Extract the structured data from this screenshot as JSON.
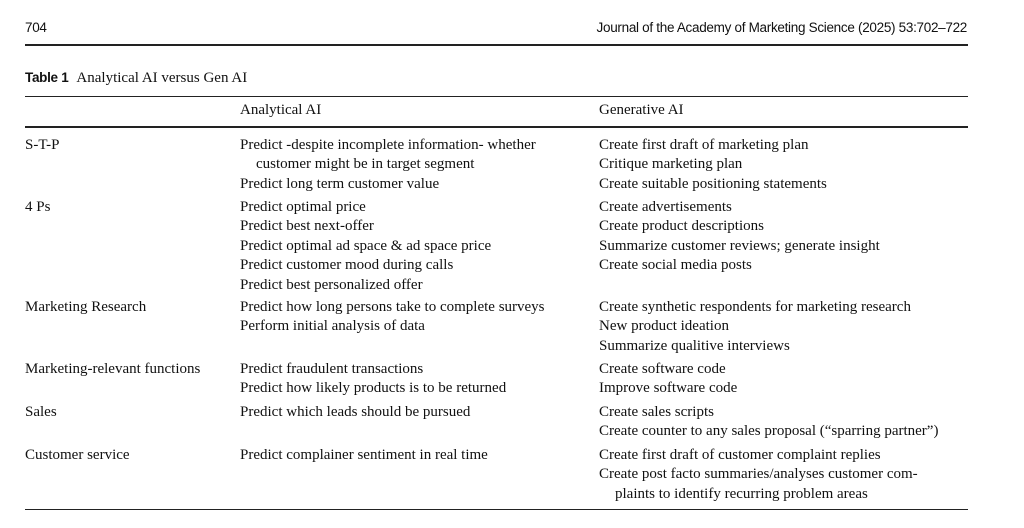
{
  "page_header": {
    "page_number": "704",
    "journal": "Journal of the Academy of Marketing Science (2025) 53:702–722"
  },
  "table": {
    "label": "Table 1",
    "title": "Analytical AI versus Gen AI",
    "columns": [
      "",
      "Analytical AI",
      "Generative AI"
    ],
    "rows": [
      {
        "category": "S-T-P",
        "analytical": [
          [
            "Predict -despite incomplete information- whether",
            "customer might be in target segment"
          ],
          [
            "Predict long term customer value"
          ]
        ],
        "generative": [
          [
            "Create first draft of marketing plan"
          ],
          [
            "Critique marketing plan"
          ],
          [
            "Create suitable positioning statements"
          ]
        ]
      },
      {
        "category": "4 Ps",
        "analytical": [
          [
            "Predict optimal price"
          ],
          [
            "Predict best next-offer"
          ],
          [
            "Predict optimal ad space & ad space price"
          ],
          [
            "Predict customer mood during calls"
          ],
          [
            "Predict best personalized offer"
          ]
        ],
        "generative": [
          [
            "Create advertisements"
          ],
          [
            "Create product descriptions"
          ],
          [
            "Summarize customer reviews; generate insight"
          ],
          [
            "Create social media posts"
          ]
        ]
      },
      {
        "category": "Marketing Research",
        "analytical": [
          [
            "Predict how long persons take to complete surveys"
          ],
          [
            "Perform initial analysis of data"
          ]
        ],
        "generative": [
          [
            "Create synthetic respondents for marketing research"
          ],
          [
            "New product ideation"
          ],
          [
            "Summarize qualitive interviews"
          ]
        ]
      },
      {
        "category": "Marketing-relevant functions",
        "analytical": [
          [
            "Predict fraudulent transactions"
          ],
          [
            "Predict how likely products is to be returned"
          ]
        ],
        "generative": [
          [
            "Create software code"
          ],
          [
            "Improve software code"
          ]
        ]
      },
      {
        "category": "Sales",
        "analytical": [
          [
            "Predict which leads should be pursued"
          ]
        ],
        "generative": [
          [
            "Create sales scripts"
          ],
          [
            "Create counter to any sales proposal (“sparring partner”)"
          ]
        ]
      },
      {
        "category": "Customer service",
        "analytical": [
          [
            "Predict complainer sentiment in real time"
          ]
        ],
        "generative": [
          [
            "Create first draft of customer complaint replies"
          ],
          [
            "Create post facto summaries/analyses customer com-",
            "plaints to identify recurring problem areas"
          ]
        ]
      }
    ]
  }
}
